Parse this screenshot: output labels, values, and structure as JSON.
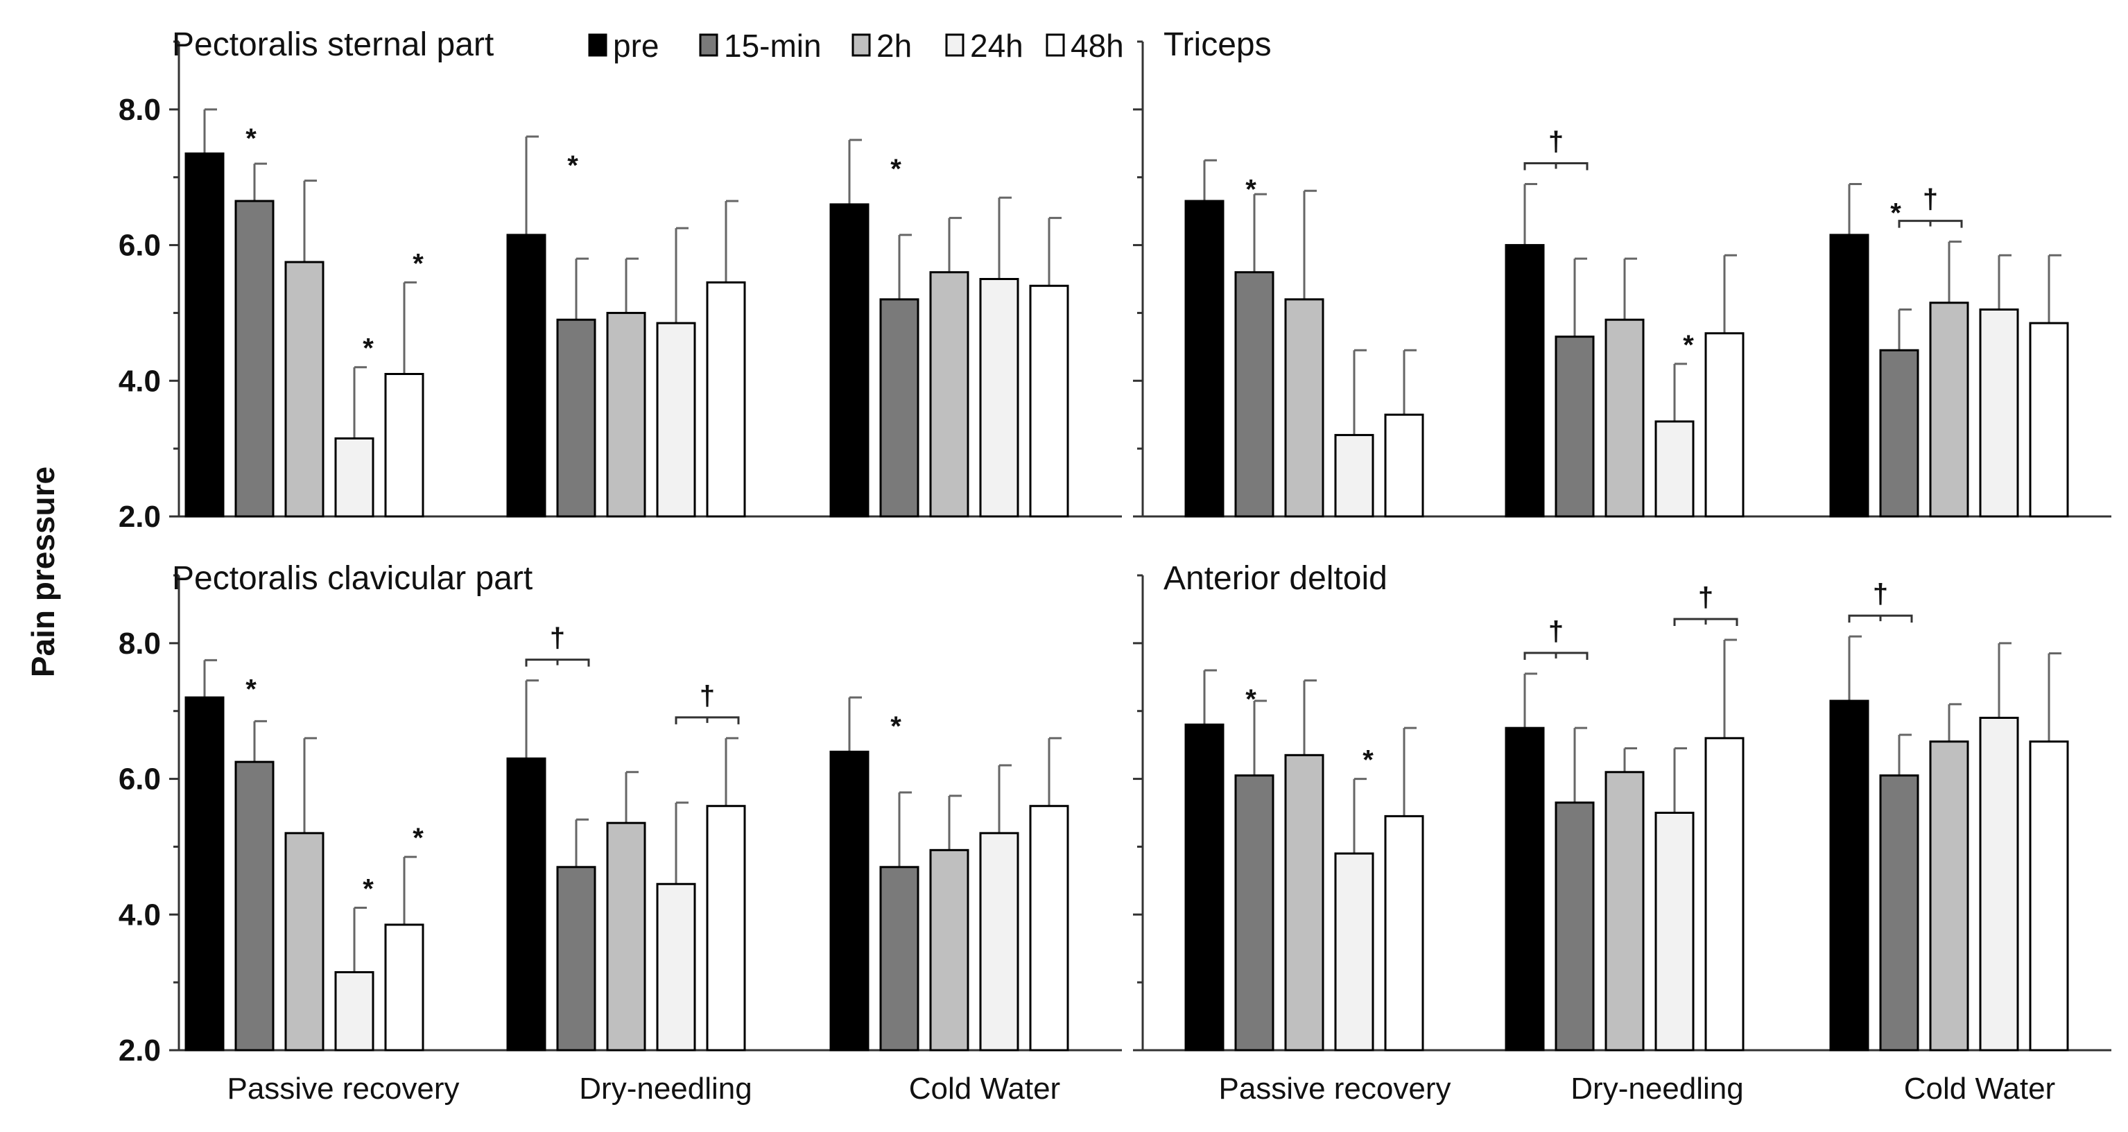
{
  "chart_data": {
    "type": "bar",
    "ylabel": "Pain pressure",
    "ylim": [
      2.0,
      9.0
    ],
    "yticks": [
      "2.0",
      "4.0",
      "6.0",
      "8.0"
    ],
    "categories": [
      "Passive recovery",
      "Dry-needling",
      "Cold Water"
    ],
    "legend": {
      "placement": "top, inside first panel",
      "entries": [
        {
          "name": "pre",
          "color": "#000000"
        },
        {
          "name": "15-min",
          "color": "#7a7a7a"
        },
        {
          "name": "2h",
          "color": "#bfbfbf"
        },
        {
          "name": "24h",
          "color": "#f2f2f2"
        },
        {
          "name": "48h",
          "color": "#ffffff"
        }
      ]
    },
    "panels": [
      {
        "title": "Pectoralis sternal part",
        "series": [
          {
            "name": "pre",
            "values": [
              7.35,
              6.15,
              6.6
            ],
            "errors": [
              0.65,
              1.45,
              0.95
            ]
          },
          {
            "name": "15-min",
            "values": [
              6.65,
              4.9,
              5.2
            ],
            "errors": [
              0.55,
              0.9,
              0.95
            ]
          },
          {
            "name": "2h",
            "values": [
              5.75,
              5.0,
              5.6
            ],
            "errors": [
              1.2,
              0.8,
              0.8
            ]
          },
          {
            "name": "24h",
            "values": [
              3.15,
              4.85,
              5.5
            ],
            "errors": [
              1.05,
              1.4,
              1.2
            ]
          },
          {
            "name": "48h",
            "values": [
              4.1,
              5.45,
              5.4
            ],
            "errors": [
              1.35,
              1.2,
              1.0
            ]
          }
        ],
        "stars": [
          [
            0,
            0
          ],
          [
            1,
            0
          ],
          [
            2,
            0
          ],
          [
            0,
            3
          ],
          [
            0,
            4
          ]
        ],
        "daggers": []
      },
      {
        "title": "Triceps",
        "series": [
          {
            "name": "pre",
            "values": [
              6.65,
              6.0,
              6.15
            ],
            "errors": [
              0.6,
              0.9,
              0.75
            ]
          },
          {
            "name": "15-min",
            "values": [
              5.6,
              4.65,
              4.45
            ],
            "errors": [
              1.15,
              1.15,
              0.6
            ]
          },
          {
            "name": "2h",
            "values": [
              5.2,
              4.9,
              5.15
            ],
            "errors": [
              1.6,
              0.9,
              0.9
            ]
          },
          {
            "name": "24h",
            "values": [
              3.2,
              3.4,
              5.05
            ],
            "errors": [
              1.25,
              0.85,
              0.8
            ]
          },
          {
            "name": "48h",
            "values": [
              3.5,
              4.7,
              4.85
            ],
            "errors": [
              0.95,
              1.15,
              1.0
            ]
          }
        ],
        "stars": [
          [
            0,
            0
          ],
          [
            1,
            3
          ],
          [
            2,
            0
          ]
        ],
        "daggers": [
          [
            1,
            0,
            1
          ],
          [
            2,
            1,
            2
          ]
        ]
      },
      {
        "title": "Pectoralis clavicular part",
        "series": [
          {
            "name": "pre",
            "values": [
              7.2,
              6.3,
              6.4
            ],
            "errors": [
              0.55,
              1.15,
              0.8
            ]
          },
          {
            "name": "15-min",
            "values": [
              6.25,
              4.7,
              4.7
            ],
            "errors": [
              0.6,
              0.7,
              1.1
            ]
          },
          {
            "name": "2h",
            "values": [
              5.2,
              5.35,
              4.95
            ],
            "errors": [
              1.4,
              0.75,
              0.8
            ]
          },
          {
            "name": "24h",
            "values": [
              3.15,
              4.45,
              5.2
            ],
            "errors": [
              0.95,
              1.2,
              1.0
            ]
          },
          {
            "name": "48h",
            "values": [
              3.85,
              5.6,
              5.6
            ],
            "errors": [
              1.0,
              1.0,
              1.0
            ]
          }
        ],
        "stars": [
          [
            0,
            0
          ],
          [
            2,
            0
          ],
          [
            0,
            3
          ],
          [
            0,
            4
          ]
        ],
        "daggers": [
          [
            1,
            0,
            1
          ],
          [
            1,
            3,
            4
          ]
        ]
      },
      {
        "title": "Anterior deltoid",
        "series": [
          {
            "name": "pre",
            "values": [
              6.8,
              6.75,
              7.15
            ],
            "errors": [
              0.8,
              0.8,
              0.95
            ]
          },
          {
            "name": "15-min",
            "values": [
              6.05,
              5.65,
              6.05
            ],
            "errors": [
              1.1,
              1.1,
              0.6
            ]
          },
          {
            "name": "2h",
            "values": [
              6.35,
              6.1,
              6.55
            ],
            "errors": [
              1.1,
              0.35,
              0.55
            ]
          },
          {
            "name": "24h",
            "values": [
              4.9,
              5.5,
              6.9
            ],
            "errors": [
              1.1,
              0.95,
              1.1
            ]
          },
          {
            "name": "48h",
            "values": [
              5.45,
              6.6,
              6.55
            ],
            "errors": [
              1.3,
              1.45,
              1.3
            ]
          }
        ],
        "stars": [
          [
            0,
            0
          ],
          [
            0,
            3
          ]
        ],
        "daggers": [
          [
            1,
            0,
            1
          ],
          [
            1,
            3,
            4
          ],
          [
            2,
            0,
            1
          ]
        ]
      }
    ],
    "annotations": {
      "star": "*",
      "dagger": "†"
    }
  }
}
